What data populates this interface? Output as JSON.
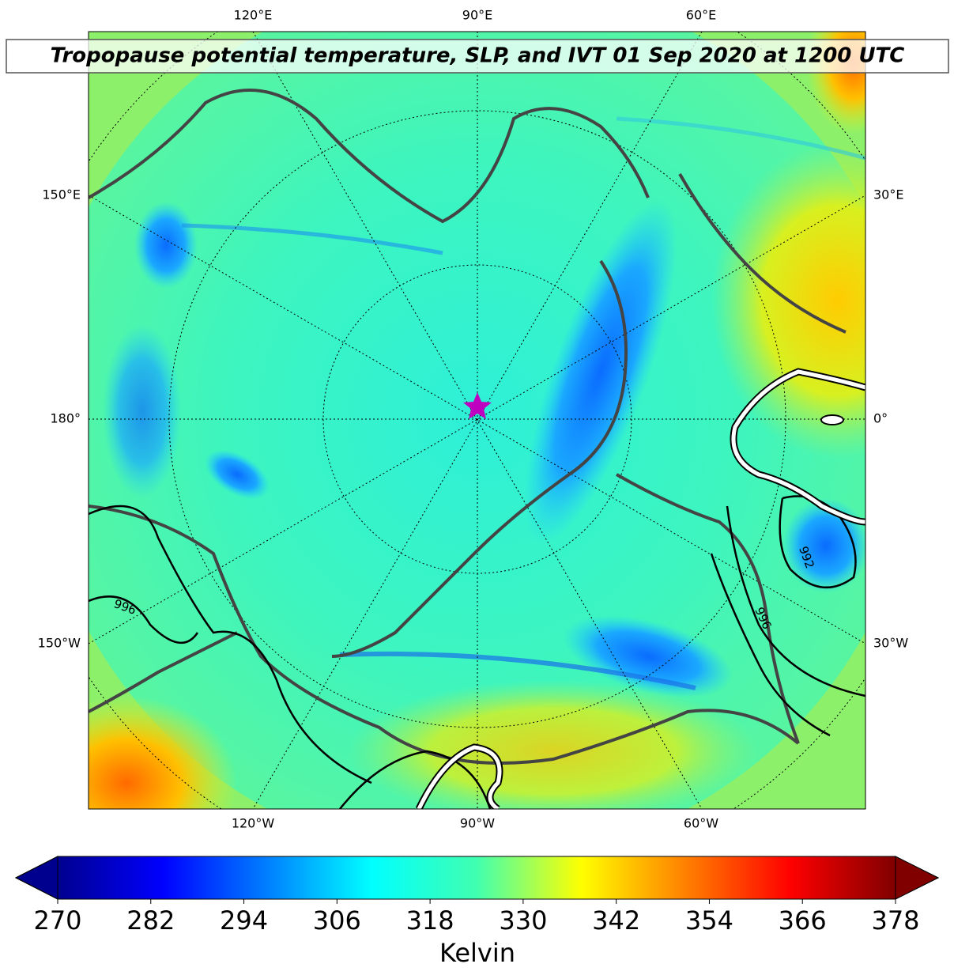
{
  "title": "Tropopause potential temperature, SLP, and IVT 01 Sep 2020 at 1200 UTC",
  "map": {
    "lon_labels": {
      "top": [
        "120°E",
        "90°E",
        "60°E"
      ],
      "bottom": [
        "120°W",
        "90°W",
        "60°W"
      ],
      "left": [
        "150°E",
        "180°",
        "150°W"
      ],
      "right": [
        "30°E",
        "0°",
        "30°W"
      ]
    },
    "contour_labels": [
      "996",
      "992",
      "996"
    ]
  },
  "colorbar": {
    "range": [
      270,
      378
    ],
    "ticks": [
      270,
      282,
      294,
      306,
      318,
      330,
      342,
      354,
      366,
      378
    ],
    "label": "Kelvin"
  }
}
